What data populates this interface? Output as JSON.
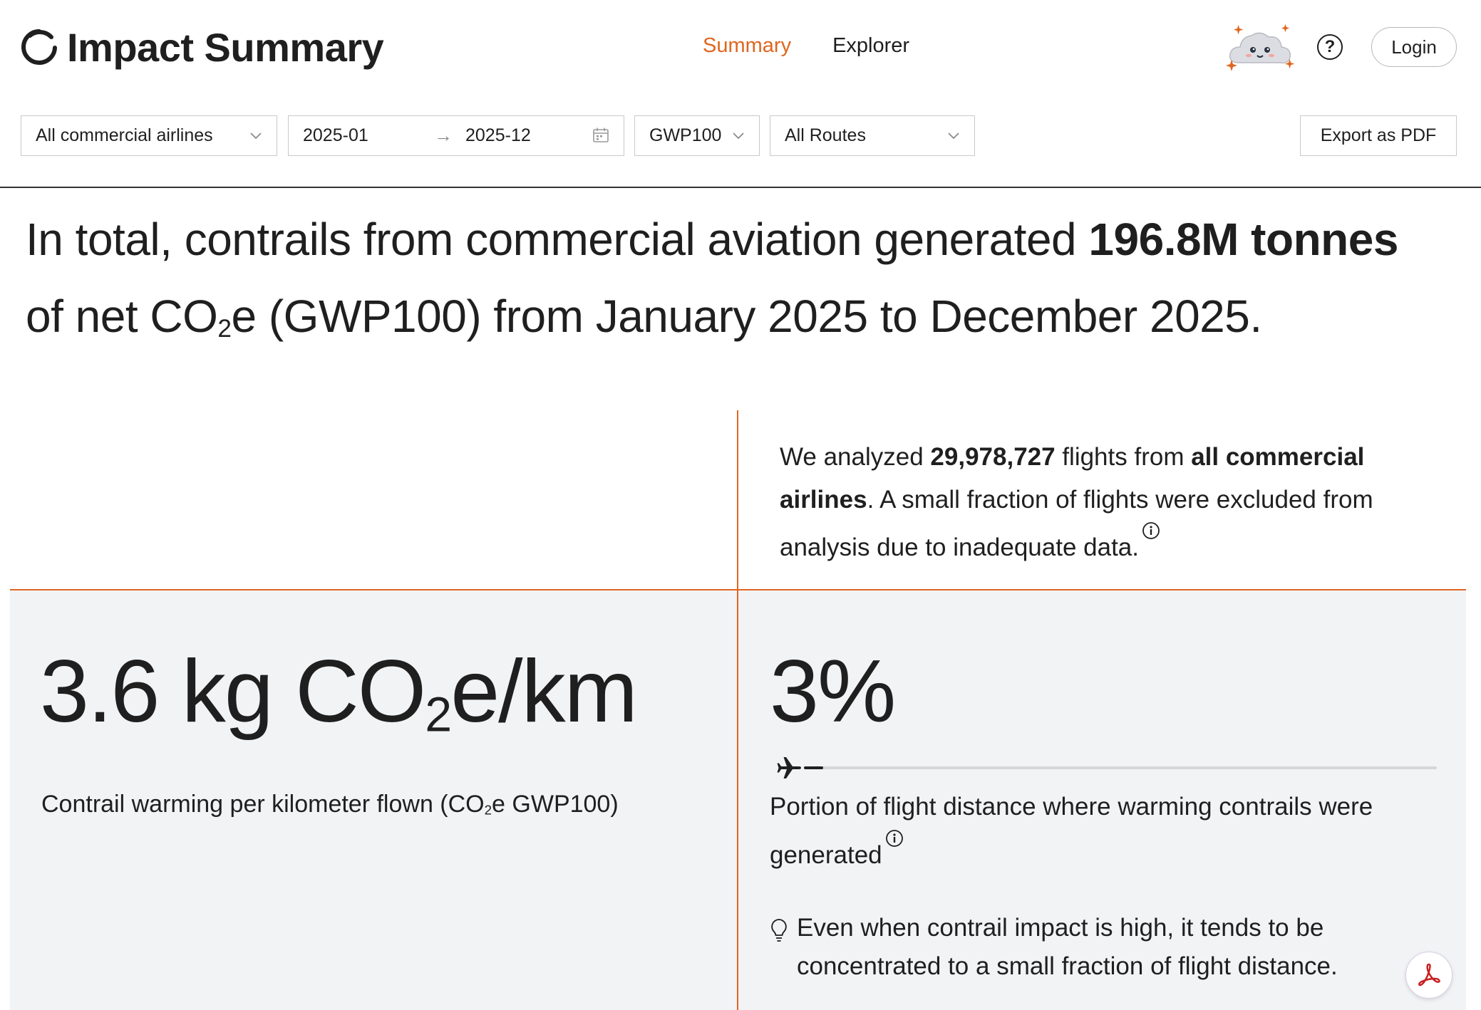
{
  "header": {
    "title": "Impact Summary",
    "tabs": [
      {
        "label": "Summary",
        "active": true
      },
      {
        "label": "Explorer",
        "active": false
      }
    ],
    "help_label": "?",
    "login_label": "Login",
    "accent_color": "#e0661f"
  },
  "filters": {
    "airline": "All commercial airlines",
    "date_start": "2025-01",
    "date_arrow": "→",
    "date_end": "2025-12",
    "metric": "GWP100",
    "routes": "All Routes",
    "export_label": "Export as PDF"
  },
  "headline": {
    "prefix": "In total, contrails from commercial aviation generated ",
    "amount": "196.8M tonnes",
    "middle": "of net CO",
    "sub": "2",
    "suffix": "e (GWP100) from January 2025 to December 2025."
  },
  "analysis": {
    "p1": "We analyzed ",
    "flights": "29,978,727",
    "p2": " flights from ",
    "scope": "all commercial airlines",
    "p3": ". A small fraction of flights were excluded from analysis due to inadequate data."
  },
  "metric_intensity": {
    "value": "3.6 kg CO",
    "sub": "2",
    "unit": "e/km",
    "label_prefix": "Contrail warming per kilometer flown (CO",
    "label_sub": "2",
    "label_suffix": "e GWP100)"
  },
  "metric_portion": {
    "value": "3%",
    "progress_fraction": 0.03,
    "label": "Portion of flight distance where warming contrails were generated",
    "tip": "Even when contrail impact is high, it tends to be concentrated to a small fraction of flight distance."
  }
}
